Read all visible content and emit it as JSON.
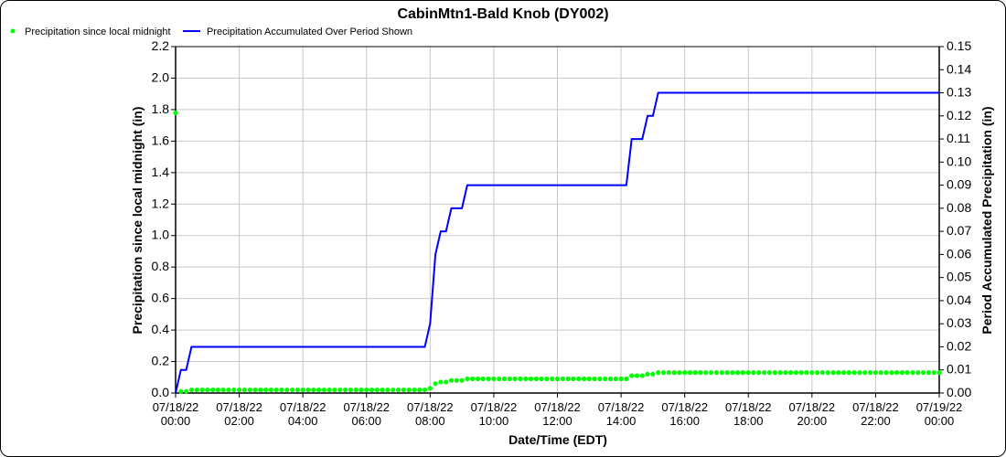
{
  "chart_data": {
    "type": "line",
    "title": "CabinMtn1-Bald Knob (DY002)",
    "xlabel": "Date/Time (EDT)",
    "ylabel": "Precipitation since local midnight (in)",
    "y2label": "Period Accumulated Precipitation (in)",
    "xlim": [
      "07/18/22 00:00",
      "07/19/22 00:00"
    ],
    "ylim": [
      0,
      2.2
    ],
    "y2lim": [
      0,
      0.15
    ],
    "grid": true,
    "legend_position": "top-left",
    "x_ticks": [
      [
        "07/18/22",
        "00:00"
      ],
      [
        "07/18/22",
        "02:00"
      ],
      [
        "07/18/22",
        "04:00"
      ],
      [
        "07/18/22",
        "06:00"
      ],
      [
        "07/18/22",
        "08:00"
      ],
      [
        "07/18/22",
        "10:00"
      ],
      [
        "07/18/22",
        "12:00"
      ],
      [
        "07/18/22",
        "14:00"
      ],
      [
        "07/18/22",
        "16:00"
      ],
      [
        "07/18/22",
        "18:00"
      ],
      [
        "07/18/22",
        "20:00"
      ],
      [
        "07/18/22",
        "22:00"
      ],
      [
        "07/19/22",
        "00:00"
      ]
    ],
    "y_ticks": [
      "0.0",
      "0.2",
      "0.4",
      "0.6",
      "0.8",
      "1.0",
      "1.2",
      "1.4",
      "1.6",
      "1.8",
      "2.0",
      "2.2"
    ],
    "y2_ticks": [
      "0.00",
      "0.01",
      "0.02",
      "0.03",
      "0.04",
      "0.05",
      "0.06",
      "0.07",
      "0.08",
      "0.09",
      "0.10",
      "0.11",
      "0.12",
      "0.13",
      "0.14",
      "0.15"
    ],
    "series": [
      {
        "name": "Precipitation since local midnight",
        "axis": "left",
        "style": "points",
        "color": "#00ff00",
        "points": [
          [
            "00:00",
            1.78
          ],
          [
            "00:10",
            0.01
          ],
          [
            "00:20",
            0.01
          ],
          [
            "00:30",
            0.02
          ],
          [
            "00:40",
            0.02
          ],
          [
            "00:50",
            0.02
          ],
          [
            "01:00",
            0.02
          ],
          [
            "01:10",
            0.02
          ],
          [
            "01:20",
            0.02
          ],
          [
            "01:30",
            0.02
          ],
          [
            "01:40",
            0.02
          ],
          [
            "01:50",
            0.02
          ],
          [
            "02:00",
            0.02
          ],
          [
            "02:10",
            0.02
          ],
          [
            "02:20",
            0.02
          ],
          [
            "02:30",
            0.02
          ],
          [
            "02:40",
            0.02
          ],
          [
            "02:50",
            0.02
          ],
          [
            "03:00",
            0.02
          ],
          [
            "03:10",
            0.02
          ],
          [
            "03:20",
            0.02
          ],
          [
            "03:30",
            0.02
          ],
          [
            "03:40",
            0.02
          ],
          [
            "03:50",
            0.02
          ],
          [
            "04:00",
            0.02
          ],
          [
            "04:10",
            0.02
          ],
          [
            "04:20",
            0.02
          ],
          [
            "04:30",
            0.02
          ],
          [
            "04:40",
            0.02
          ],
          [
            "04:50",
            0.02
          ],
          [
            "05:00",
            0.02
          ],
          [
            "05:10",
            0.02
          ],
          [
            "05:20",
            0.02
          ],
          [
            "05:30",
            0.02
          ],
          [
            "05:40",
            0.02
          ],
          [
            "05:50",
            0.02
          ],
          [
            "06:00",
            0.02
          ],
          [
            "06:10",
            0.02
          ],
          [
            "06:20",
            0.02
          ],
          [
            "06:30",
            0.02
          ],
          [
            "06:40",
            0.02
          ],
          [
            "06:50",
            0.02
          ],
          [
            "07:00",
            0.02
          ],
          [
            "07:10",
            0.02
          ],
          [
            "07:20",
            0.02
          ],
          [
            "07:30",
            0.02
          ],
          [
            "07:40",
            0.02
          ],
          [
            "07:50",
            0.02
          ],
          [
            "08:00",
            0.03
          ],
          [
            "08:10",
            0.06
          ],
          [
            "08:20",
            0.07
          ],
          [
            "08:30",
            0.07
          ],
          [
            "08:40",
            0.08
          ],
          [
            "08:50",
            0.08
          ],
          [
            "09:00",
            0.08
          ],
          [
            "09:10",
            0.09
          ],
          [
            "09:20",
            0.09
          ],
          [
            "09:30",
            0.09
          ],
          [
            "09:40",
            0.09
          ],
          [
            "09:50",
            0.09
          ],
          [
            "10:00",
            0.09
          ],
          [
            "10:10",
            0.09
          ],
          [
            "10:20",
            0.09
          ],
          [
            "10:30",
            0.09
          ],
          [
            "10:40",
            0.09
          ],
          [
            "10:50",
            0.09
          ],
          [
            "11:00",
            0.09
          ],
          [
            "11:10",
            0.09
          ],
          [
            "11:20",
            0.09
          ],
          [
            "11:30",
            0.09
          ],
          [
            "11:40",
            0.09
          ],
          [
            "11:50",
            0.09
          ],
          [
            "12:00",
            0.09
          ],
          [
            "12:10",
            0.09
          ],
          [
            "12:20",
            0.09
          ],
          [
            "12:30",
            0.09
          ],
          [
            "12:40",
            0.09
          ],
          [
            "12:50",
            0.09
          ],
          [
            "13:00",
            0.09
          ],
          [
            "13:10",
            0.09
          ],
          [
            "13:20",
            0.09
          ],
          [
            "13:30",
            0.09
          ],
          [
            "13:40",
            0.09
          ],
          [
            "13:50",
            0.09
          ],
          [
            "14:00",
            0.09
          ],
          [
            "14:10",
            0.09
          ],
          [
            "14:20",
            0.11
          ],
          [
            "14:30",
            0.11
          ],
          [
            "14:40",
            0.11
          ],
          [
            "14:50",
            0.12
          ],
          [
            "15:00",
            0.12
          ],
          [
            "15:10",
            0.13
          ],
          [
            "15:20",
            0.13
          ],
          [
            "15:30",
            0.13
          ],
          [
            "15:40",
            0.13
          ],
          [
            "15:50",
            0.13
          ],
          [
            "16:00",
            0.13
          ],
          [
            "16:10",
            0.13
          ],
          [
            "16:20",
            0.13
          ],
          [
            "16:30",
            0.13
          ],
          [
            "16:40",
            0.13
          ],
          [
            "16:50",
            0.13
          ],
          [
            "17:00",
            0.13
          ],
          [
            "17:10",
            0.13
          ],
          [
            "17:20",
            0.13
          ],
          [
            "17:30",
            0.13
          ],
          [
            "17:40",
            0.13
          ],
          [
            "17:50",
            0.13
          ],
          [
            "18:00",
            0.13
          ],
          [
            "18:10",
            0.13
          ],
          [
            "18:20",
            0.13
          ],
          [
            "18:30",
            0.13
          ],
          [
            "18:40",
            0.13
          ],
          [
            "18:50",
            0.13
          ],
          [
            "19:00",
            0.13
          ],
          [
            "19:10",
            0.13
          ],
          [
            "19:20",
            0.13
          ],
          [
            "19:30",
            0.13
          ],
          [
            "19:40",
            0.13
          ],
          [
            "19:50",
            0.13
          ],
          [
            "20:00",
            0.13
          ],
          [
            "20:10",
            0.13
          ],
          [
            "20:20",
            0.13
          ],
          [
            "20:30",
            0.13
          ],
          [
            "20:40",
            0.13
          ],
          [
            "20:50",
            0.13
          ],
          [
            "21:00",
            0.13
          ],
          [
            "21:10",
            0.13
          ],
          [
            "21:20",
            0.13
          ],
          [
            "21:30",
            0.13
          ],
          [
            "21:40",
            0.13
          ],
          [
            "21:50",
            0.13
          ],
          [
            "22:00",
            0.13
          ],
          [
            "22:10",
            0.13
          ],
          [
            "22:20",
            0.13
          ],
          [
            "22:30",
            0.13
          ],
          [
            "22:40",
            0.13
          ],
          [
            "22:50",
            0.13
          ],
          [
            "23:00",
            0.13
          ],
          [
            "23:10",
            0.13
          ],
          [
            "23:20",
            0.13
          ],
          [
            "23:30",
            0.13
          ],
          [
            "23:40",
            0.13
          ],
          [
            "23:50",
            0.13
          ],
          [
            "24:00",
            0.13
          ]
        ]
      },
      {
        "name": "Precipitation Accumulated Over Period Shown",
        "axis": "right",
        "style": "line",
        "color": "#0000ff",
        "points": [
          [
            "00:00",
            0
          ],
          [
            "00:10",
            0.01
          ],
          [
            "00:20",
            0.01
          ],
          [
            "00:30",
            0.02
          ],
          [
            "07:50",
            0.02
          ],
          [
            "08:00",
            0.03
          ],
          [
            "08:10",
            0.06
          ],
          [
            "08:20",
            0.07
          ],
          [
            "08:30",
            0.07
          ],
          [
            "08:40",
            0.08
          ],
          [
            "09:00",
            0.08
          ],
          [
            "09:10",
            0.09
          ],
          [
            "14:10",
            0.09
          ],
          [
            "14:20",
            0.11
          ],
          [
            "14:40",
            0.11
          ],
          [
            "14:50",
            0.12
          ],
          [
            "15:00",
            0.12
          ],
          [
            "15:10",
            0.13
          ],
          [
            "24:00",
            0.13
          ]
        ]
      }
    ]
  }
}
